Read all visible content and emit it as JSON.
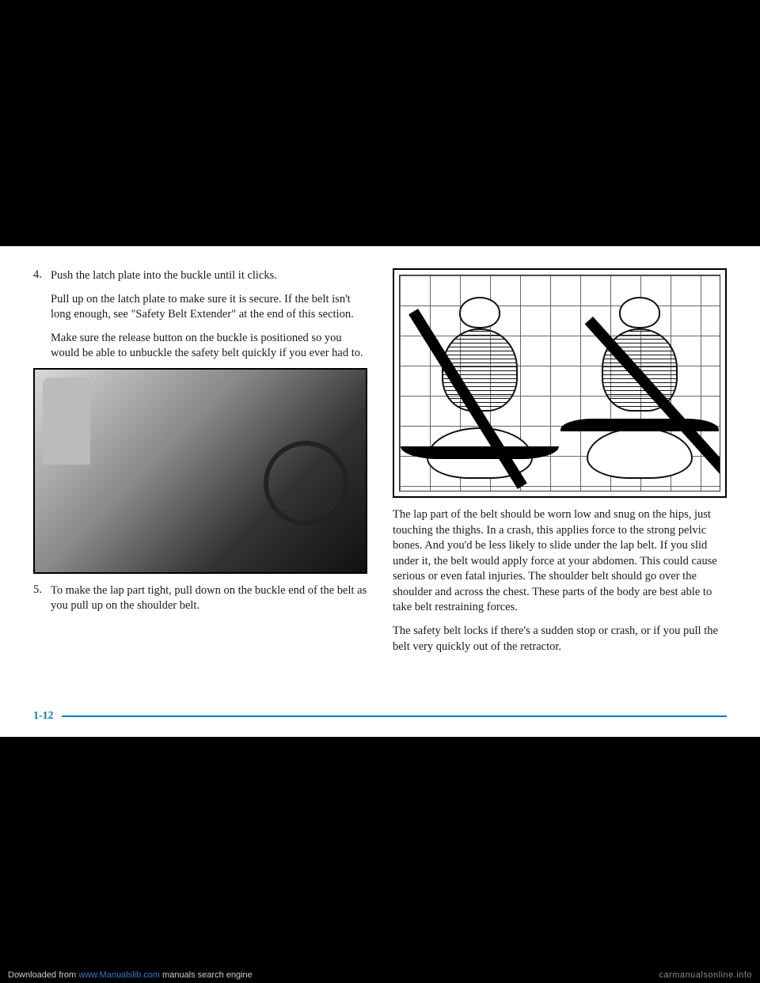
{
  "left_column": {
    "item4": {
      "number": "4.",
      "p1": "Push the latch plate into the buckle until it clicks.",
      "p2": "Pull up on the latch plate to make sure it is secure. If the belt isn't long enough, see \"Safety Belt Extender\" at the end of this section.",
      "p3": "Make sure the release button on the buckle is positioned so you would be able to unbuckle the safety belt quickly if you ever had to."
    },
    "item5": {
      "number": "5.",
      "p1": "To make the lap part tight, pull down on the buckle end of the belt as you pull up on the shoulder belt."
    }
  },
  "right_column": {
    "p1": "The lap part of the belt should be worn low and snug on the hips, just touching the thighs. In a crash, this applies force to the strong pelvic bones. And you'd be less likely to slide under the lap belt. If you slid under it, the belt would apply force at your abdomen. This could cause serious or even fatal injuries. The shoulder belt should go over the shoulder and across the chest. These parts of the body are best able to take belt restraining forces.",
    "p2": "The safety belt locks if there's a sudden stop or crash, or if you pull the belt very quickly out of the retractor."
  },
  "page_number": "1-12",
  "watermark_left_prefix": "Downloaded from ",
  "watermark_left_link": "www.Manualslib.com",
  "watermark_left_suffix": " manuals search engine",
  "watermark_right": "carmanualsonline.info"
}
